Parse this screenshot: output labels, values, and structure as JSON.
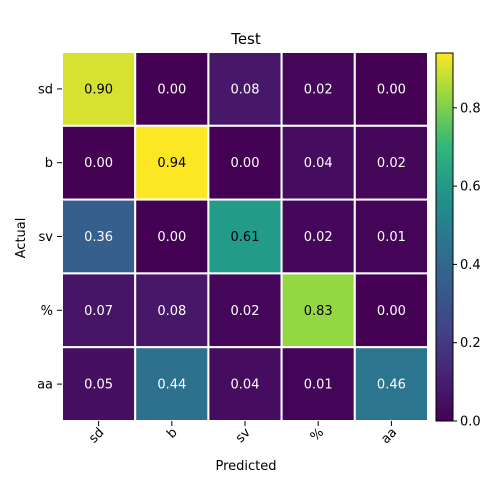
{
  "chart_data": {
    "type": "heatmap",
    "title": "Test",
    "xlabel": "Predicted",
    "ylabel": "Actual",
    "row_labels": [
      "sd",
      "b",
      "sv",
      "%",
      "aa"
    ],
    "col_labels": [
      "sd",
      "b",
      "sv",
      "%",
      "aa"
    ],
    "values": [
      [
        0.9,
        0.0,
        0.08,
        0.02,
        0.0
      ],
      [
        0.0,
        0.94,
        0.0,
        0.04,
        0.02
      ],
      [
        0.36,
        0.0,
        0.61,
        0.02,
        0.01
      ],
      [
        0.07,
        0.08,
        0.02,
        0.83,
        0.0
      ],
      [
        0.05,
        0.44,
        0.04,
        0.01,
        0.46
      ]
    ],
    "value_labels": [
      [
        "0.90",
        "0.00",
        "0.08",
        "0.02",
        "0.00"
      ],
      [
        "0.00",
        "0.94",
        "0.00",
        "0.04",
        "0.02"
      ],
      [
        "0.36",
        "0.00",
        "0.61",
        "0.02",
        "0.01"
      ],
      [
        "0.07",
        "0.08",
        "0.02",
        "0.83",
        "0.00"
      ],
      [
        "0.05",
        "0.44",
        "0.04",
        "0.01",
        "0.46"
      ]
    ],
    "colormap": "viridis",
    "vmin": 0.0,
    "vmax": 0.94,
    "colorbar": {
      "ticks": [
        0.0,
        0.2,
        0.4,
        0.6,
        0.8
      ],
      "tick_labels": [
        "0.0",
        "0.2",
        "0.4",
        "0.6",
        "0.8"
      ]
    },
    "grid_line_color": "#ffffff",
    "dark_text_color": "#000000",
    "light_text_color": "#ffffff"
  }
}
